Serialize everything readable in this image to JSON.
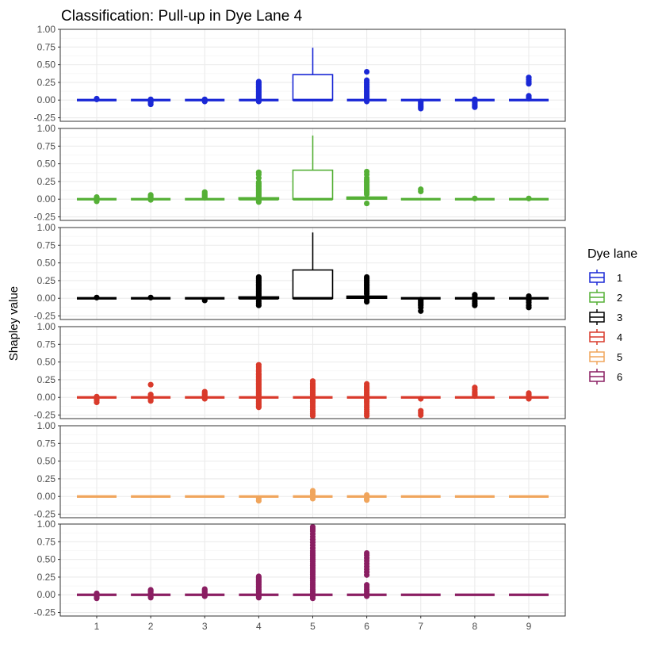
{
  "chart_data": {
    "type": "boxplot",
    "title": "Classification: Pull-up in Dye Lane 4",
    "xlabel": "",
    "ylabel": "Shapley value",
    "categories": [
      "1",
      "2",
      "3",
      "4",
      "5",
      "6",
      "7",
      "8",
      "9"
    ],
    "y_ticks": [
      "1.00",
      "0.75",
      "0.50",
      "0.25",
      "0.00",
      "-0.25"
    ],
    "ylim": [
      -0.3,
      1.0
    ],
    "legend": {
      "title": "Dye lane",
      "position": "right",
      "entries": [
        {
          "label": "1",
          "color": "#1a28d6"
        },
        {
          "label": "2",
          "color": "#55b036"
        },
        {
          "label": "3",
          "color": "#000000"
        },
        {
          "label": "4",
          "color": "#d93a2b"
        },
        {
          "label": "5",
          "color": "#f0a55c"
        },
        {
          "label": "6",
          "color": "#8a1e62"
        }
      ]
    },
    "panels": [
      {
        "lane": "1",
        "color": "#1a28d6",
        "boxes": [
          {
            "x": "1",
            "q1": 0,
            "med": 0,
            "q3": 0,
            "wlo": 0,
            "whi": 0,
            "outliers": [
              0.01,
              0.02
            ]
          },
          {
            "x": "2",
            "q1": 0,
            "med": 0,
            "q3": 0,
            "wlo": 0,
            "whi": 0,
            "outliers": [
              -0.02,
              -0.04,
              -0.06,
              0.01
            ]
          },
          {
            "x": "3",
            "q1": 0,
            "med": 0,
            "q3": 0,
            "wlo": 0,
            "whi": 0,
            "outliers": [
              -0.02,
              -0.01,
              0.01
            ]
          },
          {
            "x": "4",
            "q1": 0,
            "med": 0,
            "q3": 0,
            "wlo": 0,
            "whi": 0,
            "outliers": [
              0.02,
              0.04,
              0.06,
              0.08,
              0.1,
              0.12,
              0.14,
              0.16,
              0.18,
              0.2,
              0.22,
              0.24,
              0.26,
              -0.02
            ]
          },
          {
            "x": "5",
            "q1": 0,
            "med": 0,
            "q3": 0.36,
            "wlo": 0,
            "whi": 0.74,
            "outliers": []
          },
          {
            "x": "6",
            "q1": 0,
            "med": 0,
            "q3": 0,
            "wlo": 0,
            "whi": 0,
            "outliers": [
              0.02,
              0.04,
              0.06,
              0.08,
              0.1,
              0.12,
              0.14,
              0.16,
              0.18,
              0.2,
              0.22,
              0.24,
              0.26,
              0.28,
              0.4,
              -0.02
            ]
          },
          {
            "x": "7",
            "q1": 0,
            "med": 0,
            "q3": 0,
            "wlo": 0,
            "whi": 0,
            "outliers": [
              -0.02,
              -0.04,
              -0.06,
              -0.08,
              -0.1,
              -0.12
            ]
          },
          {
            "x": "8",
            "q1": 0,
            "med": 0,
            "q3": 0,
            "wlo": 0,
            "whi": 0,
            "outliers": [
              -0.02,
              -0.04,
              -0.06,
              -0.08,
              -0.1,
              0.01
            ]
          },
          {
            "x": "9",
            "q1": 0,
            "med": 0,
            "q3": 0,
            "wlo": 0,
            "whi": 0,
            "outliers": [
              0.02,
              0.04,
              0.06,
              0.23,
              0.26,
              0.29,
              0.32
            ]
          }
        ]
      },
      {
        "lane": "2",
        "color": "#55b036",
        "boxes": [
          {
            "x": "1",
            "q1": 0,
            "med": 0,
            "q3": 0,
            "wlo": 0,
            "whi": 0,
            "outliers": [
              -0.03,
              -0.01,
              0.02,
              0.03
            ]
          },
          {
            "x": "2",
            "q1": 0,
            "med": 0,
            "q3": 0,
            "wlo": 0,
            "whi": 0,
            "outliers": [
              -0.01,
              0.02,
              0.04,
              0.06
            ]
          },
          {
            "x": "3",
            "q1": 0,
            "med": 0,
            "q3": 0,
            "wlo": 0,
            "whi": 0,
            "outliers": [
              0.02,
              0.04,
              0.06,
              0.08,
              0.1
            ]
          },
          {
            "x": "4",
            "q1": 0,
            "med": 0,
            "q3": 0.02,
            "wlo": 0,
            "whi": 0.03,
            "outliers": [
              -0.04,
              -0.02,
              0.04,
              0.06,
              0.08,
              0.1,
              0.12,
              0.14,
              0.16,
              0.18,
              0.2,
              0.22,
              0.24,
              0.3,
              0.35,
              0.38
            ]
          },
          {
            "x": "5",
            "q1": 0,
            "med": 0,
            "q3": 0.41,
            "wlo": 0,
            "whi": 0.9,
            "outliers": []
          },
          {
            "x": "6",
            "q1": 0,
            "med": 0.02,
            "q3": 0.03,
            "wlo": 0,
            "whi": 0.05,
            "outliers": [
              -0.06,
              0.07,
              0.09,
              0.11,
              0.13,
              0.15,
              0.17,
              0.19,
              0.21,
              0.23,
              0.25,
              0.27,
              0.3,
              0.35,
              0.39
            ]
          },
          {
            "x": "7",
            "q1": 0,
            "med": 0,
            "q3": 0,
            "wlo": 0,
            "whi": 0,
            "outliers": [
              0.11,
              0.14
            ]
          },
          {
            "x": "8",
            "q1": 0,
            "med": 0,
            "q3": 0,
            "wlo": 0,
            "whi": 0,
            "outliers": [
              0.01
            ]
          },
          {
            "x": "9",
            "q1": 0,
            "med": 0,
            "q3": 0,
            "wlo": 0,
            "whi": 0,
            "outliers": [
              0.01
            ]
          }
        ]
      },
      {
        "lane": "3",
        "color": "#000000",
        "boxes": [
          {
            "x": "1",
            "q1": 0,
            "med": 0,
            "q3": 0,
            "wlo": 0,
            "whi": 0,
            "outliers": [
              0.01
            ]
          },
          {
            "x": "2",
            "q1": 0,
            "med": 0,
            "q3": 0,
            "wlo": 0,
            "whi": 0,
            "outliers": [
              0.01
            ]
          },
          {
            "x": "3",
            "q1": 0,
            "med": 0,
            "q3": 0,
            "wlo": 0,
            "whi": 0,
            "outliers": [
              -0.03
            ]
          },
          {
            "x": "4",
            "q1": 0,
            "med": 0,
            "q3": 0.02,
            "wlo": 0,
            "whi": 0.03,
            "outliers": [
              -0.1,
              -0.07,
              -0.04,
              0.04,
              0.06,
              0.08,
              0.1,
              0.12,
              0.14,
              0.16,
              0.18,
              0.2,
              0.22,
              0.24,
              0.26,
              0.28,
              0.3
            ]
          },
          {
            "x": "5",
            "q1": 0,
            "med": 0,
            "q3": 0.4,
            "wlo": 0,
            "whi": 0.93,
            "outliers": []
          },
          {
            "x": "6",
            "q1": 0,
            "med": 0.02,
            "q3": 0.03,
            "wlo": 0,
            "whi": 0.04,
            "outliers": [
              -0.05,
              -0.02,
              0.06,
              0.08,
              0.1,
              0.12,
              0.14,
              0.16,
              0.18,
              0.2,
              0.22,
              0.24,
              0.26,
              0.28,
              0.3
            ]
          },
          {
            "x": "7",
            "q1": 0,
            "med": 0,
            "q3": 0,
            "wlo": 0,
            "whi": 0,
            "outliers": [
              -0.02,
              -0.04,
              -0.06,
              -0.08,
              -0.1,
              -0.13,
              -0.18
            ]
          },
          {
            "x": "8",
            "q1": 0,
            "med": 0,
            "q3": 0,
            "wlo": 0,
            "whi": 0,
            "outliers": [
              -0.1,
              -0.07,
              -0.04,
              0.03,
              0.05
            ]
          },
          {
            "x": "9",
            "q1": 0,
            "med": 0,
            "q3": 0,
            "wlo": 0,
            "whi": 0,
            "outliers": [
              -0.13,
              -0.1,
              -0.06,
              -0.03,
              0.03
            ]
          }
        ]
      },
      {
        "lane": "4",
        "color": "#d93a2b",
        "boxes": [
          {
            "x": "1",
            "q1": 0,
            "med": 0,
            "q3": 0,
            "wlo": 0,
            "whi": 0,
            "outliers": [
              -0.07,
              -0.04,
              -0.02,
              0.01
            ]
          },
          {
            "x": "2",
            "q1": 0,
            "med": 0,
            "q3": 0,
            "wlo": 0,
            "whi": 0,
            "outliers": [
              -0.05,
              -0.02,
              0.02,
              0.04,
              0.18
            ]
          },
          {
            "x": "3",
            "q1": 0,
            "med": 0,
            "q3": 0,
            "wlo": 0,
            "whi": 0,
            "outliers": [
              -0.02,
              0.02,
              0.04,
              0.06,
              0.08
            ]
          },
          {
            "x": "4",
            "q1": 0,
            "med": 0,
            "q3": 0,
            "wlo": 0,
            "whi": 0,
            "outliers": [
              -0.14,
              -0.12,
              -0.1,
              -0.08,
              -0.06,
              -0.04,
              -0.02,
              0.02,
              0.04,
              0.06,
              0.08,
              0.1,
              0.12,
              0.14,
              0.16,
              0.18,
              0.2,
              0.22,
              0.24,
              0.26,
              0.28,
              0.3,
              0.32,
              0.34,
              0.37,
              0.4,
              0.43,
              0.46
            ]
          },
          {
            "x": "5",
            "q1": 0,
            "med": 0,
            "q3": 0,
            "wlo": 0,
            "whi": 0,
            "outliers": [
              -0.26,
              -0.23,
              -0.2,
              -0.17,
              -0.14,
              -0.11,
              -0.08,
              -0.06,
              -0.04,
              -0.02,
              0.02,
              0.04,
              0.06,
              0.08,
              0.1,
              0.12,
              0.14,
              0.16,
              0.18,
              0.2,
              0.23
            ]
          },
          {
            "x": "6",
            "q1": 0,
            "med": 0,
            "q3": 0,
            "wlo": 0,
            "whi": 0,
            "outliers": [
              -0.26,
              -0.23,
              -0.2,
              -0.17,
              -0.14,
              -0.11,
              -0.08,
              -0.06,
              -0.04,
              -0.02,
              0.02,
              0.04,
              0.06,
              0.08,
              0.1,
              0.12,
              0.14,
              0.16,
              0.19
            ]
          },
          {
            "x": "7",
            "q1": 0,
            "med": 0,
            "q3": 0,
            "wlo": 0,
            "whi": 0,
            "outliers": [
              -0.25,
              -0.22,
              -0.19,
              -0.02
            ]
          },
          {
            "x": "8",
            "q1": 0,
            "med": 0,
            "q3": 0,
            "wlo": 0,
            "whi": 0,
            "outliers": [
              0.02,
              0.04,
              0.06,
              0.08,
              0.11,
              0.14
            ]
          },
          {
            "x": "9",
            "q1": 0,
            "med": 0,
            "q3": 0,
            "wlo": 0,
            "whi": 0,
            "outliers": [
              -0.02,
              0.02,
              0.04,
              0.06
            ]
          }
        ]
      },
      {
        "lane": "5",
        "color": "#f0a55c",
        "boxes": [
          {
            "x": "1",
            "q1": 0,
            "med": 0,
            "q3": 0,
            "wlo": 0,
            "whi": 0,
            "outliers": []
          },
          {
            "x": "2",
            "q1": 0,
            "med": 0,
            "q3": 0,
            "wlo": 0,
            "whi": 0,
            "outliers": []
          },
          {
            "x": "3",
            "q1": 0,
            "med": 0,
            "q3": 0,
            "wlo": 0,
            "whi": 0,
            "outliers": []
          },
          {
            "x": "4",
            "q1": 0,
            "med": 0,
            "q3": 0,
            "wlo": 0,
            "whi": 0,
            "outliers": [
              -0.06,
              -0.03
            ]
          },
          {
            "x": "5",
            "q1": 0,
            "med": 0,
            "q3": 0,
            "wlo": 0,
            "whi": 0,
            "outliers": [
              -0.03,
              0.03,
              0.06,
              0.08
            ]
          },
          {
            "x": "6",
            "q1": 0,
            "med": 0,
            "q3": 0,
            "wlo": 0,
            "whi": 0,
            "outliers": [
              -0.05,
              -0.03,
              0.02
            ]
          },
          {
            "x": "7",
            "q1": 0,
            "med": 0,
            "q3": 0,
            "wlo": 0,
            "whi": 0,
            "outliers": []
          },
          {
            "x": "8",
            "q1": 0,
            "med": 0,
            "q3": 0,
            "wlo": 0,
            "whi": 0,
            "outliers": []
          },
          {
            "x": "9",
            "q1": 0,
            "med": 0,
            "q3": 0,
            "wlo": 0,
            "whi": 0,
            "outliers": []
          }
        ]
      },
      {
        "lane": "6",
        "color": "#8a1e62",
        "boxes": [
          {
            "x": "1",
            "q1": 0,
            "med": 0,
            "q3": 0,
            "wlo": 0,
            "whi": 0,
            "outliers": [
              -0.05,
              -0.03,
              0.02
            ]
          },
          {
            "x": "2",
            "q1": 0,
            "med": 0,
            "q3": 0,
            "wlo": 0,
            "whi": 0,
            "outliers": [
              -0.04,
              -0.02,
              0.02,
              0.04,
              0.06,
              0.07
            ]
          },
          {
            "x": "3",
            "q1": 0,
            "med": 0,
            "q3": 0,
            "wlo": 0,
            "whi": 0,
            "outliers": [
              -0.02,
              0.02,
              0.04,
              0.06,
              0.08
            ]
          },
          {
            "x": "4",
            "q1": 0,
            "med": 0,
            "q3": 0,
            "wlo": 0,
            "whi": 0,
            "outliers": [
              -0.04,
              -0.02,
              0.02,
              0.04,
              0.06,
              0.08,
              0.1,
              0.12,
              0.14,
              0.16,
              0.18,
              0.2,
              0.22,
              0.24,
              0.26
            ]
          },
          {
            "x": "5",
            "q1": 0,
            "med": 0,
            "q3": 0,
            "wlo": 0,
            "whi": 0,
            "outliers": [
              -0.05,
              -0.02,
              0.02,
              0.05,
              0.08,
              0.11,
              0.14,
              0.17,
              0.2,
              0.23,
              0.26,
              0.29,
              0.32,
              0.35,
              0.38,
              0.41,
              0.44,
              0.47,
              0.5,
              0.53,
              0.56,
              0.59,
              0.62,
              0.66,
              0.7,
              0.74,
              0.78,
              0.82,
              0.86,
              0.9,
              0.93,
              0.96
            ]
          },
          {
            "x": "6",
            "q1": 0,
            "med": 0,
            "q3": 0,
            "wlo": 0,
            "whi": 0,
            "outliers": [
              -0.02,
              0.02,
              0.05,
              0.08,
              0.11,
              0.14,
              0.28,
              0.32,
              0.36,
              0.4,
              0.44,
              0.48,
              0.52,
              0.56,
              0.59
            ]
          },
          {
            "x": "7",
            "q1": 0,
            "med": 0,
            "q3": 0,
            "wlo": 0,
            "whi": 0,
            "outliers": []
          },
          {
            "x": "8",
            "q1": 0,
            "med": 0,
            "q3": 0,
            "wlo": 0,
            "whi": 0,
            "outliers": []
          },
          {
            "x": "9",
            "q1": 0,
            "med": 0,
            "q3": 0,
            "wlo": 0,
            "whi": 0,
            "outliers": []
          }
        ]
      }
    ]
  }
}
